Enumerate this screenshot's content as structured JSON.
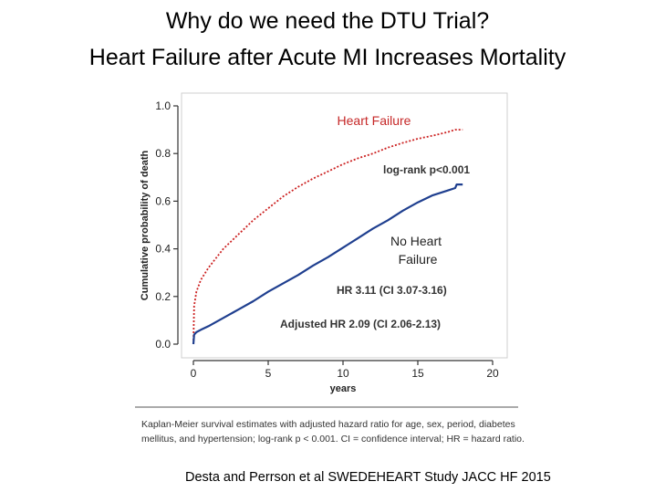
{
  "header": {
    "title_line1": "Why do we need the DTU Trial?",
    "title_line2": "Heart Failure after Acute MI Increases Mortality"
  },
  "chart_data": {
    "type": "line",
    "xlabel": "years",
    "ylabel": "Cumulative probability of death",
    "xlim": [
      0,
      20
    ],
    "ylim": [
      0,
      1.0
    ],
    "x_ticks": [
      "0",
      "5",
      "10",
      "15",
      "20"
    ],
    "y_ticks": [
      "0.0",
      "0.2",
      "0.4",
      "0.6",
      "0.8",
      "1.0"
    ],
    "grid": false,
    "series": [
      {
        "name": "Heart Failure",
        "color": "#cc2222",
        "style": "dotted",
        "x": [
          0,
          0.05,
          0.2,
          0.5,
          1,
          1.5,
          2,
          3,
          4,
          5,
          6,
          7,
          8,
          9,
          10,
          11,
          12,
          13,
          14,
          15,
          16,
          17,
          17.5,
          18
        ],
        "y": [
          0,
          0.16,
          0.22,
          0.27,
          0.32,
          0.36,
          0.4,
          0.46,
          0.52,
          0.57,
          0.62,
          0.66,
          0.695,
          0.725,
          0.755,
          0.78,
          0.8,
          0.825,
          0.845,
          0.862,
          0.875,
          0.89,
          0.9,
          0.9
        ]
      },
      {
        "name": "No Heart Failure",
        "color": "#1f3f8f",
        "style": "solid",
        "x": [
          0,
          0.05,
          0.2,
          0.5,
          1,
          2,
          3,
          4,
          5,
          6,
          7,
          8,
          9,
          10,
          11,
          12,
          13,
          14,
          15,
          16,
          17,
          17.5,
          17.6,
          18
        ],
        "y": [
          0,
          0.04,
          0.05,
          0.06,
          0.075,
          0.11,
          0.145,
          0.18,
          0.22,
          0.255,
          0.29,
          0.33,
          0.365,
          0.405,
          0.445,
          0.485,
          0.52,
          0.56,
          0.595,
          0.625,
          0.645,
          0.655,
          0.67,
          0.67
        ]
      }
    ],
    "annotations": {
      "hf_label": "Heart Failure",
      "nhf_label_line1": "No Heart",
      "nhf_label_line2": "Failure",
      "logrank": "log-rank p<0.001",
      "hr": "HR 3.11 (CI 3.07-3.16)",
      "adjusted_hr": "Adjusted HR 2.09 (CI 2.06-2.13)"
    }
  },
  "caption": "Kaplan-Meier survival estimates with adjusted hazard ratio for age, sex, period, diabetes mellitus, and hypertension; log-rank p < 0.001. CI = confidence interval; HR = hazard ratio.",
  "citation": "Desta and Perrson  et al SWEDEHEART Study JACC HF 2015"
}
